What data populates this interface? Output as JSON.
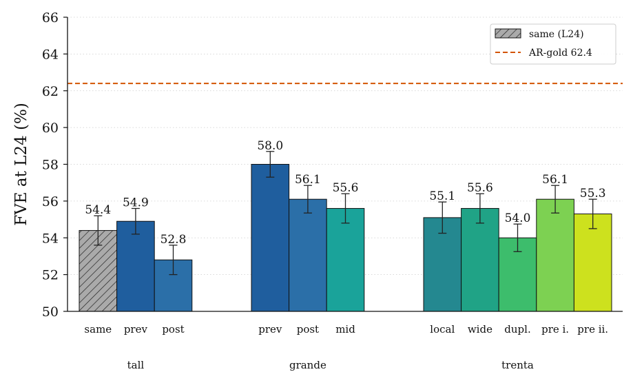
{
  "chart_data": {
    "type": "bar",
    "ylabel": "FVE at L24 (%)",
    "ylim": [
      50,
      66
    ],
    "yticks": [
      50,
      52,
      54,
      56,
      58,
      60,
      62,
      64,
      66
    ],
    "grid": "horizontal dotted",
    "legend_placement": "top-right",
    "legend": {
      "bar_entry": "same (L24)",
      "line_entry": "AR-gold 62.4"
    },
    "reference_line": {
      "value": 62.4,
      "color": "#d35400",
      "style": "dashed"
    },
    "groups": [
      {
        "name": "tall",
        "bars": [
          {
            "label": "same",
            "value": 54.4,
            "error": 0.8,
            "color": "#aaaaaa",
            "hatched": true
          },
          {
            "label": "prev",
            "value": 54.9,
            "error": 0.7,
            "color": "#1f5e9e",
            "hatched": false
          },
          {
            "label": "post",
            "value": 52.8,
            "error": 0.8,
            "color": "#2b6fa8",
            "hatched": false
          }
        ]
      },
      {
        "name": "grande",
        "bars": [
          {
            "label": "prev",
            "value": 58.0,
            "error": 0.7,
            "color": "#1f5e9e",
            "hatched": false
          },
          {
            "label": "post",
            "value": 56.1,
            "error": 0.75,
            "color": "#2b6fa8",
            "hatched": false
          },
          {
            "label": "mid",
            "value": 55.6,
            "error": 0.8,
            "color": "#1aa39a",
            "hatched": false
          }
        ]
      },
      {
        "name": "trenta",
        "bars": [
          {
            "label": "local",
            "value": 55.1,
            "error": 0.85,
            "color": "#248890",
            "hatched": false
          },
          {
            "label": "wide",
            "value": 55.6,
            "error": 0.8,
            "color": "#20a386",
            "hatched": false
          },
          {
            "label": "dupl.",
            "value": 54.0,
            "error": 0.75,
            "color": "#3dbd6c",
            "hatched": false
          },
          {
            "label": "pre i.",
            "value": 56.1,
            "error": 0.75,
            "color": "#7dd152",
            "hatched": false
          },
          {
            "label": "pre ii.",
            "value": 55.3,
            "error": 0.8,
            "color": "#cde11e",
            "hatched": false
          }
        ]
      }
    ]
  }
}
